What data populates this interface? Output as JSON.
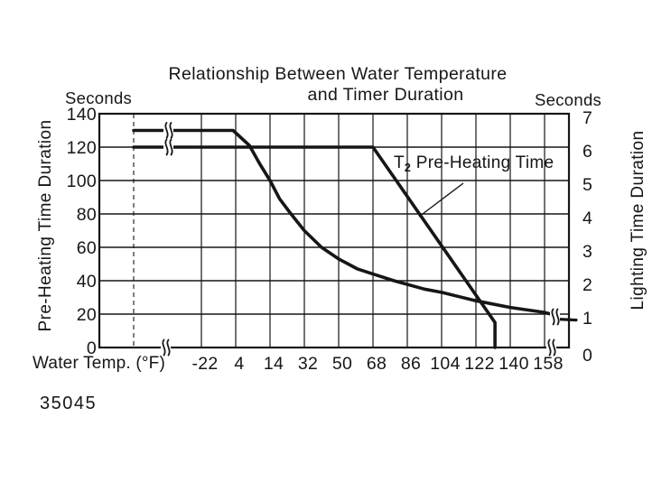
{
  "figure": {
    "title_line1": "Relationship Between Water Temperature",
    "title_line2": "and Timer Duration",
    "left_unit": "Seconds",
    "right_unit": "Seconds",
    "left_axis_label": "Pre-Heating Time Duration",
    "right_axis_label": "Lighting Time Duration",
    "x_axis_label": "Water Temp. (°F)",
    "annotation": {
      "t": "T",
      "sub": "2",
      "rest": " Pre-Heating Time"
    },
    "doc_number": "35045"
  },
  "colors": {
    "ink": "#161616",
    "paper": "#ffffff"
  },
  "chart_data": {
    "type": "line",
    "title": "Relationship Between Water Temperature and Timer Duration",
    "xlabel": "Water Temp. (°F)",
    "x_ticks": [
      -22,
      4,
      14,
      32,
      50,
      68,
      86,
      104,
      122,
      140,
      158
    ],
    "left_axis": {
      "label": "Pre-Heating Time Duration",
      "unit": "Seconds",
      "ticks": [
        0,
        20,
        40,
        60,
        80,
        100,
        120,
        140
      ],
      "range": [
        0,
        140
      ]
    },
    "right_axis": {
      "label": "Lighting Time Duration",
      "unit": "Seconds",
      "ticks": [
        0,
        1,
        2,
        3,
        4,
        5,
        6,
        7
      ],
      "range": [
        0,
        7
      ],
      "note": "aligned so 1 right-axis second = 20 left-axis seconds"
    },
    "grid": true,
    "axis_break_marks": {
      "x_axis_left": true,
      "x_axis_right": true,
      "on_flat_series_left": true,
      "on_lighting_tail_right": true
    },
    "series": [
      {
        "name": "T2 Pre-Heating Time",
        "read_axis": "left",
        "flat_left_value": 120,
        "points": [
          [
            -22,
            120
          ],
          [
            68,
            120
          ],
          [
            132,
            15
          ],
          [
            132,
            0
          ]
        ]
      },
      {
        "name": "Lighting Time",
        "read_axis": "right",
        "flat_left_value": 130,
        "points": [
          [
            -22,
            130
          ],
          [
            2,
            130
          ],
          [
            8,
            121
          ],
          [
            11,
            110
          ],
          [
            14,
            100
          ],
          [
            19,
            89
          ],
          [
            25,
            80
          ],
          [
            32,
            70
          ],
          [
            41,
            60
          ],
          [
            50,
            53
          ],
          [
            60,
            47
          ],
          [
            68,
            44
          ],
          [
            79,
            40
          ],
          [
            95,
            35
          ],
          [
            104,
            33
          ],
          [
            122,
            28
          ],
          [
            140,
            24
          ],
          [
            158,
            21
          ]
        ],
        "right_tail": {
          "before_break": 20,
          "after_break": 17
        }
      }
    ]
  }
}
